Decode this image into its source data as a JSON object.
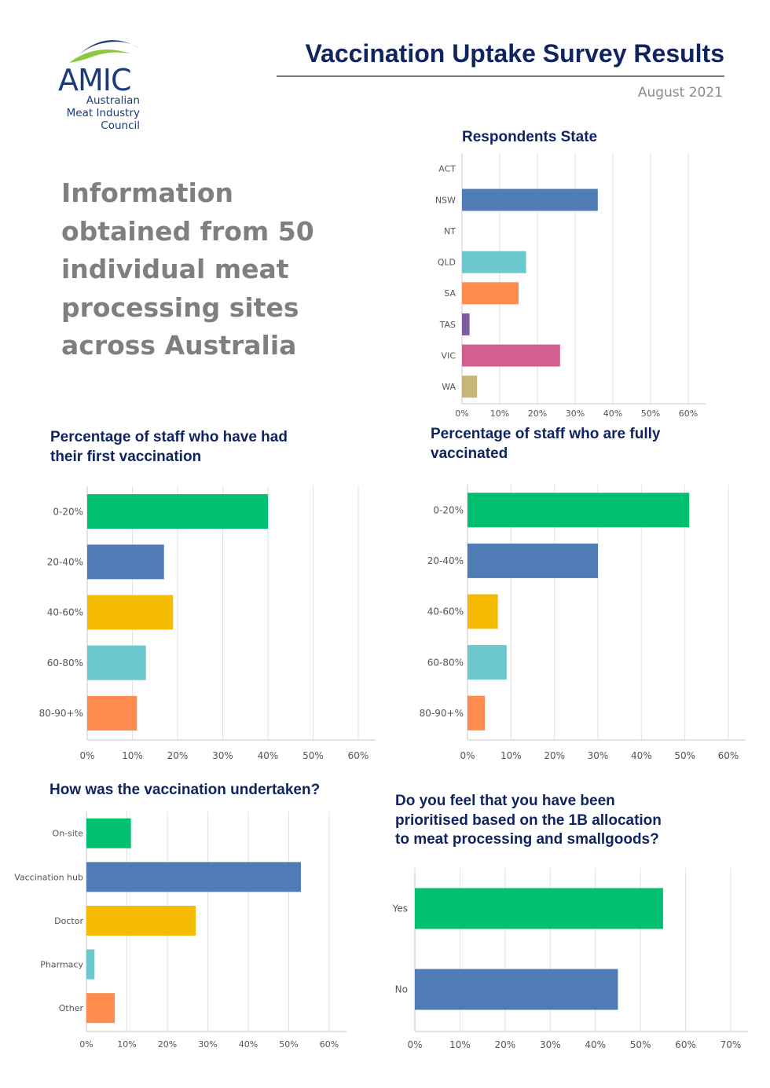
{
  "header": {
    "logo": {
      "word": "AMIC",
      "line1": "Australian",
      "line2": "Meat Industry",
      "line3": "Council"
    },
    "title": "Vaccination Uptake Survey Results",
    "date": "August 2021"
  },
  "intro": {
    "lines": [
      "Information",
      "obtained from 50",
      "individual meat",
      "processing sites",
      "across Australia"
    ]
  },
  "colors": {
    "green": "#00bf6f",
    "blue": "#507cb6",
    "yellow": "#f5bb00",
    "teal": "#6bc8cd",
    "orange": "#ff8b4f",
    "purple": "#7d5ca0",
    "pink": "#d25f90",
    "khaki": "#c8b679",
    "title_navy": "#0f2461",
    "grid": "#e2e2e2",
    "axis": "#c8c8c8",
    "label": "#555555"
  },
  "chart_data": [
    {
      "id": "respondents",
      "type": "bar",
      "orientation": "horizontal",
      "title": "Respondents State",
      "categories": [
        "ACT",
        "NSW",
        "NT",
        "QLD",
        "SA",
        "TAS",
        "VIC",
        "WA"
      ],
      "values": [
        0,
        36,
        0,
        17,
        15,
        2,
        26,
        4
      ],
      "bar_colors": [
        "blue",
        "blue",
        "blue",
        "teal",
        "orange",
        "purple",
        "pink",
        "khaki"
      ],
      "xticks": [
        "0%",
        "10%",
        "20%",
        "30%",
        "40%",
        "50%",
        "60%"
      ],
      "xlim": [
        0,
        60
      ],
      "grid": true
    },
    {
      "id": "first-vaccination",
      "type": "bar",
      "orientation": "horizontal",
      "title": [
        "Percentage of staff who have had",
        "their first vaccination"
      ],
      "categories": [
        "0-20%",
        "20-40%",
        "40-60%",
        "60-80%",
        "80-90+%"
      ],
      "values": [
        40,
        17,
        19,
        13,
        11
      ],
      "bar_colors": [
        "green",
        "blue",
        "yellow",
        "teal",
        "orange"
      ],
      "xticks": [
        "0%",
        "10%",
        "20%",
        "30%",
        "40%",
        "50%",
        "60%"
      ],
      "xlim": [
        0,
        60
      ],
      "grid": true
    },
    {
      "id": "fully-vaccinated",
      "type": "bar",
      "orientation": "horizontal",
      "title": [
        "Percentage of staff who are fully",
        "vaccinated"
      ],
      "categories": [
        "0-20%",
        "20-40%",
        "40-60%",
        "60-80%",
        "80-90+%"
      ],
      "values": [
        51,
        30,
        7,
        9,
        4
      ],
      "bar_colors": [
        "green",
        "blue",
        "yellow",
        "teal",
        "orange"
      ],
      "xticks": [
        "0%",
        "10%",
        "20%",
        "30%",
        "40%",
        "50%",
        "60%"
      ],
      "xlim": [
        0,
        60
      ],
      "grid": true
    },
    {
      "id": "vaccination-method",
      "type": "bar",
      "orientation": "horizontal",
      "title": "How was the vaccination undertaken?",
      "categories": [
        "On-site",
        "Vaccination hub",
        "Doctor",
        "Pharmacy",
        "Other"
      ],
      "values": [
        11,
        53,
        27,
        2,
        7
      ],
      "bar_colors": [
        "green",
        "blue",
        "yellow",
        "teal",
        "orange"
      ],
      "xticks": [
        "0%",
        "10%",
        "20%",
        "30%",
        "40%",
        "50%",
        "60%"
      ],
      "xlim": [
        0,
        60
      ],
      "grid": true
    },
    {
      "id": "prioritised",
      "type": "bar",
      "orientation": "horizontal",
      "title": [
        "Do you feel that you have been",
        "prioritised based on the 1B allocation",
        "to meat processing and smallgoods?"
      ],
      "categories": [
        "Yes",
        "No"
      ],
      "values": [
        55,
        45
      ],
      "bar_colors": [
        "green",
        "blue"
      ],
      "xticks": [
        "0%",
        "10%",
        "20%",
        "30%",
        "40%",
        "50%",
        "60%",
        "70%"
      ],
      "xlim": [
        0,
        70
      ],
      "grid": true
    }
  ]
}
